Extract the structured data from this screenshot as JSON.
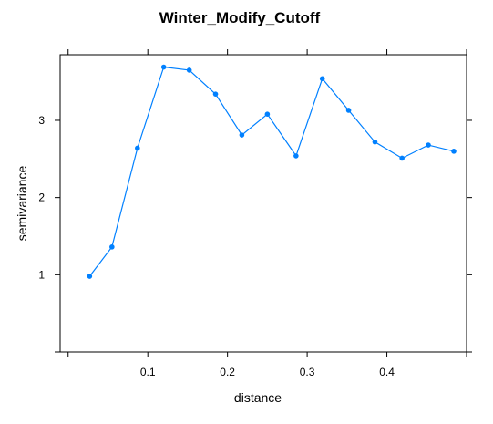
{
  "chart_data": {
    "type": "line",
    "title": "Winter_Modify_Cutoff",
    "xlabel": "distance",
    "ylabel": "semivariance",
    "xlim": [
      -0.01,
      0.5
    ],
    "ylim": [
      0,
      3.85
    ],
    "x_ticks": [
      0.1,
      0.2,
      0.3,
      0.4
    ],
    "x_tick_labels": [
      "0.1",
      "0.2",
      "0.3",
      "0.4"
    ],
    "y_ticks": [
      1,
      2,
      3
    ],
    "y_tick_labels": [
      "1",
      "2",
      "3"
    ],
    "grid": false,
    "legend": "none",
    "color": "#0080ff",
    "series": [
      {
        "x": [
          0.027,
          0.055,
          0.087,
          0.12,
          0.152,
          0.185,
          0.218,
          0.25,
          0.286,
          0.319,
          0.352,
          0.385,
          0.419,
          0.452,
          0.484
        ],
        "y": [
          0.98,
          1.36,
          2.64,
          3.69,
          3.65,
          3.34,
          2.81,
          3.08,
          2.54,
          3.54,
          3.13,
          2.72,
          2.51,
          2.68,
          2.6
        ]
      }
    ]
  }
}
